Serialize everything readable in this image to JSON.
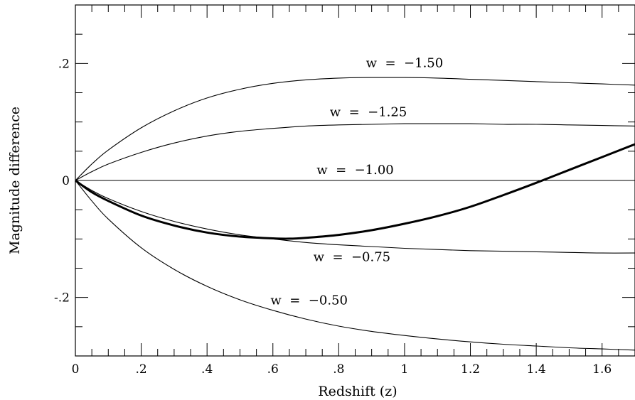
{
  "chart_data": {
    "type": "line",
    "title": "",
    "xlabel": "Redshift (z)",
    "ylabel": "Magnitude difference",
    "xlim": [
      0,
      1.7
    ],
    "ylim": [
      -0.3,
      0.3
    ],
    "x_ticks": [
      {
        "value": 0,
        "label": "0"
      },
      {
        "value": 0.2,
        "label": ".2"
      },
      {
        "value": 0.4,
        "label": ".4"
      },
      {
        "value": 0.6,
        "label": ".6"
      },
      {
        "value": 0.8,
        "label": ".8"
      },
      {
        "value": 1.0,
        "label": "1"
      },
      {
        "value": 1.2,
        "label": "1.2"
      },
      {
        "value": 1.4,
        "label": "1.4"
      },
      {
        "value": 1.6,
        "label": "1.6"
      }
    ],
    "y_ticks": [
      {
        "value": 0.2,
        "label": ".2"
      },
      {
        "value": 0,
        "label": "0"
      },
      {
        "value": -0.2,
        "label": "-.2"
      }
    ],
    "grid": false,
    "legend": "none",
    "line_color": "#000000",
    "series": [
      {
        "name": "w  =  −1.50",
        "style": "thin",
        "x": [
          0,
          0.05,
          0.1,
          0.2,
          0.3,
          0.4,
          0.5,
          0.6,
          0.7,
          0.8,
          0.9,
          1.0,
          1.1,
          1.2,
          1.3,
          1.4,
          1.5,
          1.6,
          1.7
        ],
        "y": [
          0,
          0.028,
          0.052,
          0.09,
          0.119,
          0.141,
          0.156,
          0.166,
          0.172,
          0.175,
          0.176,
          0.176,
          0.175,
          0.173,
          0.171,
          0.169,
          0.167,
          0.165,
          0.163
        ]
      },
      {
        "name": "w  =  −1.25",
        "style": "thin",
        "x": [
          0,
          0.05,
          0.1,
          0.2,
          0.3,
          0.4,
          0.5,
          0.6,
          0.7,
          0.8,
          0.9,
          1.0,
          1.1,
          1.2,
          1.3,
          1.4,
          1.5,
          1.6,
          1.7
        ],
        "y": [
          0,
          0.015,
          0.028,
          0.048,
          0.064,
          0.076,
          0.084,
          0.089,
          0.093,
          0.095,
          0.096,
          0.097,
          0.097,
          0.097,
          0.096,
          0.096,
          0.095,
          0.094,
          0.093
        ]
      },
      {
        "name": "w  =  −1.00",
        "style": "thin",
        "x": [
          0,
          1.7
        ],
        "y": [
          0,
          0
        ]
      },
      {
        "name": "w  =  −0.75",
        "style": "thin",
        "x": [
          0,
          0.05,
          0.1,
          0.2,
          0.3,
          0.4,
          0.5,
          0.6,
          0.7,
          0.8,
          0.9,
          1.0,
          1.1,
          1.2,
          1.3,
          1.4,
          1.5,
          1.6,
          1.7
        ],
        "y": [
          0,
          -0.017,
          -0.031,
          -0.053,
          -0.07,
          -0.083,
          -0.093,
          -0.1,
          -0.106,
          -0.11,
          -0.113,
          -0.116,
          -0.118,
          -0.12,
          -0.121,
          -0.122,
          -0.123,
          -0.124,
          -0.124
        ]
      },
      {
        "name": "w  =  −0.50",
        "style": "thin",
        "x": [
          0,
          0.05,
          0.1,
          0.2,
          0.3,
          0.4,
          0.5,
          0.6,
          0.7,
          0.8,
          0.9,
          1.0,
          1.1,
          1.2,
          1.3,
          1.4,
          1.5,
          1.6,
          1.7
        ],
        "y": [
          0,
          -0.035,
          -0.066,
          -0.115,
          -0.152,
          -0.181,
          -0.204,
          -0.222,
          -0.237,
          -0.249,
          -0.258,
          -0.265,
          -0.271,
          -0.276,
          -0.28,
          -0.283,
          -0.286,
          -0.288,
          -0.29
        ]
      },
      {
        "name": "",
        "style": "thick",
        "x": [
          0,
          0.05,
          0.1,
          0.2,
          0.3,
          0.4,
          0.5,
          0.6,
          0.65,
          0.7,
          0.8,
          0.9,
          1.0,
          1.1,
          1.2,
          1.3,
          1.4,
          1.5,
          1.6,
          1.7
        ],
        "y": [
          0,
          -0.02,
          -0.035,
          -0.06,
          -0.077,
          -0.089,
          -0.096,
          -0.099,
          -0.0995,
          -0.098,
          -0.093,
          -0.085,
          -0.074,
          -0.061,
          -0.045,
          -0.025,
          -0.004,
          0.018,
          0.04,
          0.062
        ]
      }
    ],
    "annotations": [
      {
        "text": "w  =  −1.50",
        "x": 1.0,
        "y": 0.194
      },
      {
        "text": "w  =  −1.25",
        "x": 0.89,
        "y": 0.11
      },
      {
        "text": "w  =  −1.00",
        "x": 0.85,
        "y": 0.011
      },
      {
        "text": "w  =  −0.75",
        "x": 0.84,
        "y": -0.138
      },
      {
        "text": "w  =  −0.50",
        "x": 0.71,
        "y": -0.212
      }
    ]
  }
}
